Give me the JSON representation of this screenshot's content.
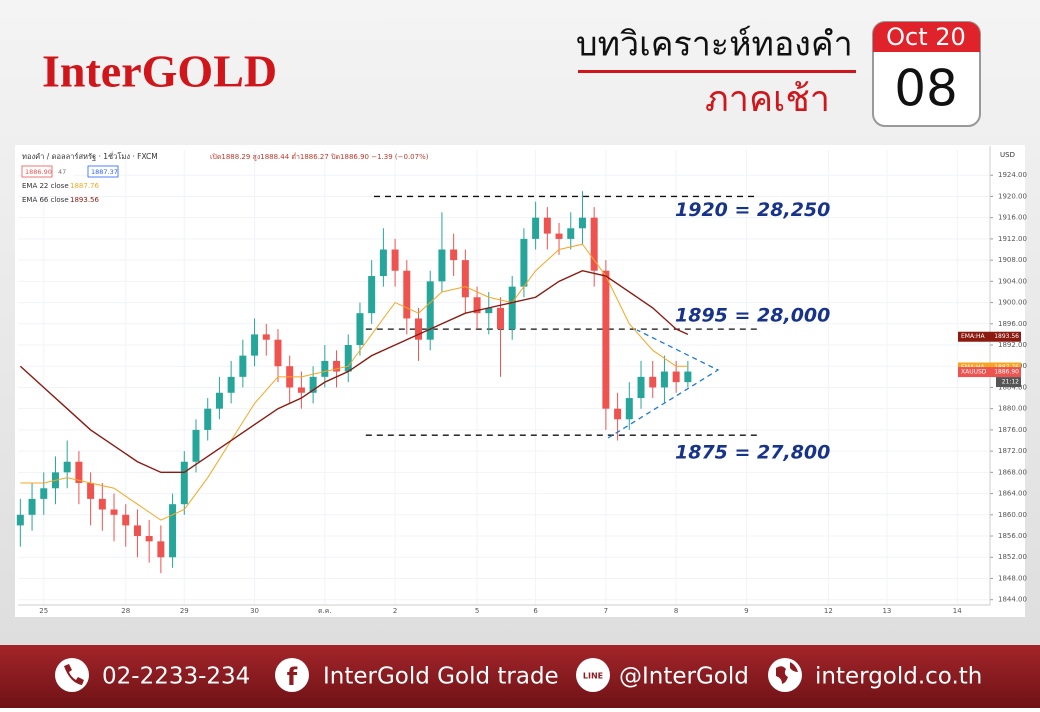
{
  "header": {
    "logo": "InterGOLD",
    "title": "บทวิเคราะห์ทองคำ",
    "subtitle": "ภาคเช้า",
    "month": "Oct 20",
    "day": "08"
  },
  "chart_data": {
    "type": "candlestick",
    "symbol": "ทองคำ / ดอลลาร์สหรัฐ · 1ชั่วโมง · FXCM",
    "ohlc_text": "เปิด1888.29 สูง1888.44 ต่ำ1886.27 ปิด1886.90 −1.39 (−0.07%)",
    "quote_boxes": [
      "1886.90",
      "47",
      "1887.37"
    ],
    "currency": "USD",
    "up_color": "#26a69a",
    "down_color": "#ef5350",
    "x": [
      -2,
      -1,
      0,
      1,
      2,
      3,
      4,
      5,
      6,
      7,
      8,
      9,
      10,
      11,
      12,
      13,
      14,
      15,
      16,
      17,
      18,
      19,
      20,
      21,
      22,
      23,
      24,
      25,
      26,
      27,
      28,
      29,
      30,
      31,
      32,
      33,
      34,
      35,
      36,
      37,
      38,
      39,
      40,
      41,
      42,
      43,
      44,
      45,
      46,
      47,
      48,
      49,
      50,
      51,
      52,
      53,
      54,
      55
    ],
    "open": [
      1858,
      1860,
      1863,
      1865,
      1868,
      1870,
      1866,
      1863,
      1861,
      1860,
      1858,
      1856,
      1855,
      1852,
      1862,
      1870,
      1876,
      1880,
      1883,
      1886,
      1890,
      1894,
      1893,
      1888,
      1884,
      1883,
      1886,
      1889,
      1887,
      1892,
      1898,
      1905,
      1910,
      1906,
      1897,
      1893,
      1904,
      1910,
      1908,
      1901,
      1898,
      1899,
      1895,
      1903,
      1912,
      1916,
      1913,
      1912,
      1914,
      1916,
      1906,
      1880,
      1878,
      1882,
      1886,
      1884,
      1887,
      1885
    ],
    "high": [
      1863,
      1866,
      1868,
      1871,
      1874,
      1872,
      1868,
      1866,
      1864,
      1862,
      1861,
      1859,
      1858,
      1864,
      1872,
      1878,
      1882,
      1886,
      1889,
      1893,
      1897,
      1896,
      1895,
      1890,
      1887,
      1888,
      1892,
      1891,
      1894,
      1900,
      1908,
      1914,
      1912,
      1908,
      1899,
      1906,
      1917,
      1913,
      1910,
      1903,
      1902,
      1901,
      1905,
      1914,
      1919,
      1918,
      1915,
      1917,
      1921,
      1918,
      1908,
      1883,
      1885,
      1889,
      1889,
      1890,
      1889,
      1889
    ],
    "low": [
      1854,
      1857,
      1860,
      1862,
      1865,
      1862,
      1858,
      1857,
      1855,
      1854,
      1852,
      1851,
      1849,
      1850,
      1860,
      1868,
      1874,
      1878,
      1881,
      1884,
      1888,
      1890,
      1885,
      1881,
      1880,
      1881,
      1884,
      1884,
      1885,
      1890,
      1896,
      1903,
      1903,
      1894,
      1889,
      1891,
      1902,
      1905,
      1898,
      1895,
      1894,
      1886,
      1893,
      1901,
      1910,
      1910,
      1909,
      1910,
      1911,
      1903,
      1876,
      1874,
      1876,
      1880,
      1882,
      1881,
      1883,
      1884
    ],
    "close": [
      1860,
      1863,
      1865,
      1868,
      1870,
      1866,
      1863,
      1861,
      1860,
      1858,
      1856,
      1855,
      1852,
      1862,
      1870,
      1876,
      1880,
      1883,
      1886,
      1890,
      1894,
      1893,
      1888,
      1884,
      1883,
      1886,
      1889,
      1887,
      1892,
      1898,
      1905,
      1910,
      1906,
      1897,
      1893,
      1904,
      1910,
      1908,
      1901,
      1898,
      1899,
      1895,
      1903,
      1912,
      1916,
      1913,
      1912,
      1914,
      1916,
      1906,
      1880,
      1878,
      1882,
      1886,
      1884,
      1887,
      1885,
      1887
    ],
    "series": [
      {
        "name": "EMA 22 close",
        "last_label": "1887.76",
        "color": "#f5a623",
        "x": [
          -2,
          0,
          2,
          4,
          6,
          8,
          10,
          12,
          14,
          16,
          18,
          20,
          22,
          24,
          26,
          28,
          30,
          32,
          34,
          36,
          38,
          40,
          42,
          44,
          46,
          48,
          50,
          52,
          54,
          55
        ],
        "values": [
          1866,
          1866,
          1867,
          1866,
          1865,
          1862,
          1859,
          1861,
          1867,
          1874,
          1881,
          1886,
          1886,
          1887,
          1888,
          1894,
          1900,
          1898,
          1902,
          1903,
          1901,
          1900,
          1906,
          1910,
          1911,
          1905,
          1896,
          1891,
          1888,
          1888
        ]
      },
      {
        "name": "EMA 66 close",
        "last_label": "1893.56",
        "color": "#8b1a10",
        "x": [
          -2,
          0,
          2,
          4,
          6,
          8,
          10,
          12,
          14,
          16,
          18,
          20,
          22,
          24,
          26,
          28,
          30,
          32,
          34,
          36,
          38,
          40,
          42,
          44,
          46,
          48,
          50,
          52,
          54,
          55
        ],
        "values": [
          1888,
          1884,
          1880,
          1876,
          1873,
          1870,
          1868,
          1868,
          1871,
          1874,
          1877,
          1880,
          1882,
          1885,
          1887,
          1890,
          1892,
          1894,
          1896,
          1898,
          1899,
          1900,
          1901,
          1904,
          1906,
          1905,
          1902,
          1899,
          1895,
          1894
        ]
      }
    ],
    "price_tags": [
      {
        "name": "EMA:HA",
        "label": "1893.56",
        "value": 1893.56,
        "color": "#8b1a10"
      },
      {
        "name": "EMA:HA",
        "label": "1887.76",
        "value": 1887.76,
        "color": "#f5a623"
      },
      {
        "name": "XAUUSD",
        "label": "1886.90",
        "value": 1886.9,
        "color": "#ef5350"
      }
    ],
    "time_tag": "21:12",
    "levels": [
      {
        "value": 1920,
        "label": "1920 = 28,250"
      },
      {
        "value": 1895,
        "label": "1895 = 28,000"
      },
      {
        "value": 1875,
        "label": "1875 = 27,800"
      }
    ],
    "xlim": [
      -2.2,
      80.8
    ],
    "xticks": [
      {
        "value": 0,
        "label": "25"
      },
      {
        "value": 7,
        "label": "28"
      },
      {
        "value": 12,
        "label": "29"
      },
      {
        "value": 18,
        "label": "30"
      },
      {
        "value": 24,
        "label": "ต.ค."
      },
      {
        "value": 30,
        "label": "2"
      },
      {
        "value": 37,
        "label": "5"
      },
      {
        "value": 42,
        "label": "6"
      },
      {
        "value": 48,
        "label": "7"
      },
      {
        "value": 54,
        "label": "8"
      },
      {
        "value": 60,
        "label": "9"
      },
      {
        "value": 67,
        "label": "12"
      },
      {
        "value": 72,
        "label": "13"
      },
      {
        "value": 78,
        "label": "14"
      }
    ],
    "ylim": [
      1843,
      1928
    ],
    "yticks": [
      {
        "value": 1844,
        "label": "1844.00"
      },
      {
        "value": 1848,
        "label": "1848.00"
      },
      {
        "value": 1852,
        "label": "1852.00"
      },
      {
        "value": 1856,
        "label": "1856.00"
      },
      {
        "value": 1860,
        "label": "1860.00"
      },
      {
        "value": 1864,
        "label": "1864.00"
      },
      {
        "value": 1868,
        "label": "1868.00"
      },
      {
        "value": 1872,
        "label": "1872.00"
      },
      {
        "value": 1876,
        "label": "1876.00"
      },
      {
        "value": 1880,
        "label": "1880.00"
      },
      {
        "value": 1884,
        "label": "1884.00"
      },
      {
        "value": 1888,
        "label": "1888.00"
      },
      {
        "value": 1892,
        "label": "1892.00"
      },
      {
        "value": 1896,
        "label": "1896.00"
      },
      {
        "value": 1900,
        "label": "1900.00"
      },
      {
        "value": 1904,
        "label": "1904.00"
      },
      {
        "value": 1908,
        "label": "1908.00"
      },
      {
        "value": 1912,
        "label": "1912.00"
      },
      {
        "value": 1916,
        "label": "1916.00"
      },
      {
        "value": 1920,
        "label": "1920.00"
      },
      {
        "value": 1924,
        "label": "1924.00"
      }
    ],
    "grid": true
  },
  "footer": {
    "phone": "02-2233-234",
    "facebook_icon": "f",
    "facebook": "InterGold Gold trade",
    "line_icon": "LINE",
    "line": "@InterGold",
    "website": "intergold.co.th"
  }
}
